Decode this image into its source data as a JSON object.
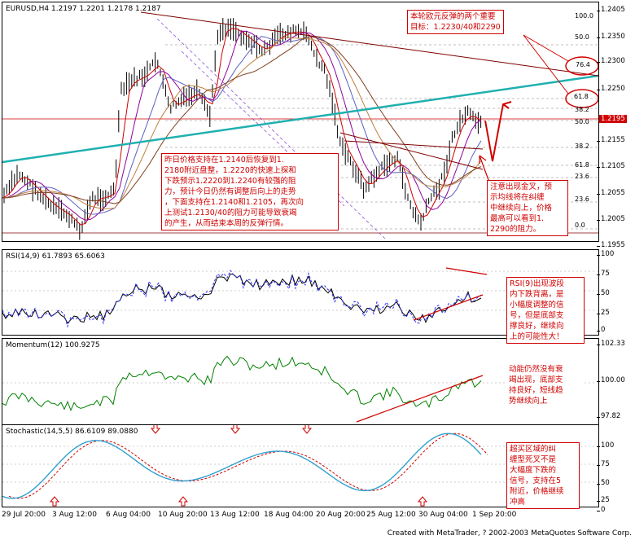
{
  "header": {
    "symbol": "EURUSD,H4",
    "ohlc": "1.2197 1.2201 1.2178 1.2187"
  },
  "colors": {
    "accent": "#d00000",
    "trend": "#20b0b0",
    "rsi_dash": "#3030ff",
    "momentum": "#008000",
    "stoch_dash": "#d00000",
    "stoch_main": "#30a0d0"
  },
  "price_axis": {
    "labels": [
      "1.2405",
      "1.2350",
      "1.2300",
      "1.2250",
      "1.2205",
      "1.2155",
      "1.2105",
      "1.2055",
      "1.2005",
      "1.1955"
    ],
    "current": "1.2195"
  },
  "fib_upper": [
    "100.0",
    "50.0",
    "76.4",
    "61.8",
    "38.2",
    "50.0",
    "38.2",
    "61.8",
    "23.6",
    "23.6",
    "0.0"
  ],
  "rsi": {
    "label": "RSI(14,9)",
    "v1": "61.7893",
    "v2": "65.6063",
    "axis": [
      "100",
      "75",
      "50",
      "25",
      "0"
    ]
  },
  "momentum": {
    "label": "Momentum(12)",
    "v1": "100.9275",
    "axis": [
      "102.33",
      "100.00",
      "97.82"
    ]
  },
  "stoch": {
    "label": "Stochastic(14,5,5)",
    "v1": "86.6109",
    "v2": "89.0880",
    "axis": [
      "100",
      "75",
      "50",
      "25",
      "0"
    ]
  },
  "x_axis": [
    "29 Jul 20:00",
    "3 Aug 12:00",
    "6 Aug 04:00",
    "10 Aug 20:00",
    "13 Aug 12:00",
    "18 Aug 04:00",
    "20 Aug 20:00",
    "25 Aug 12:00",
    "30 Aug 04:00",
    "1 Sep 20:00"
  ],
  "notes": {
    "top_right": "本轮欧元反弹的两个重要\n目标：1.2230/40和2290",
    "main_left": "昨日价格支持在1.2140后恢复到1.\n2180附近盘整，1.2220的快速上探和\n下跌预示1.2220到1.2240有较强的阻\n力，预计今日仍然有调整后向上的走势\n，下面支持在1.2140和1.2105，再次向\n上测试1.2130/40的阻力可能导致衰竭\n的产生，从而结束本周的反弹行情。",
    "main_right": "注意出现金叉，预\n示均线将在纠缠\n中继续向上，价格\n最高可以看到1.\n2290的阻力。",
    "rsi": "RSI(9)出现波段\n内下跌背离，是\n小幅度调整的信\n号，但是底部支\n撑良好，继续向\n上的可能性大！",
    "momentum": "动能仍然没有衰\n竭出现，底部支\n持良好，短线趋\n势继续向上",
    "stoch": "超买区域的纠\n缠型死叉不是\n大幅度下跌的\n信号，支持在5\n附近，价格继续\n冲高"
  },
  "circle_labels": [
    "76.4",
    "61.8"
  ],
  "footer": "Created with MetaTrader, ? 2002-2003 MetaQuotes Software Corp."
}
